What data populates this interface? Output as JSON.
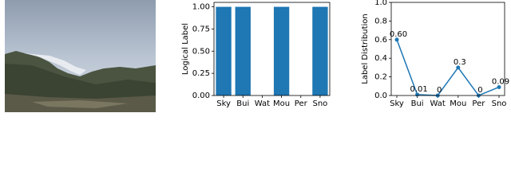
{
  "chart_data": [
    {
      "type": "bar",
      "ylabel": "Logical Label",
      "categories": [
        "Sky",
        "Bui",
        "Wat",
        "Mou",
        "Per",
        "Sno"
      ],
      "values": [
        1,
        1,
        0,
        1,
        0,
        1
      ],
      "color": "#1f77b4",
      "ylim": [
        0,
        1.05
      ],
      "yticks": [
        {
          "value": 0,
          "label": "0.00"
        },
        0.25,
        {
          "value": 0.5,
          "label": "0.50"
        },
        0.75,
        {
          "value": 1,
          "label": "1.00"
        }
      ]
    },
    {
      "type": "line",
      "ylabel": "Label Distribution",
      "categories": [
        "Sky",
        "Bui",
        "Wat",
        "Mou",
        "Per",
        "Sno"
      ],
      "values": [
        0.6,
        0.01,
        0,
        0.3,
        0,
        0.09
      ],
      "value_labels": [
        "0.60",
        "0.01",
        "0",
        "0.3",
        "0",
        "0.09"
      ],
      "color": "#1f77b4",
      "ylim": [
        0,
        1.0
      ],
      "yticks": [
        {
          "value": 0,
          "label": "0.0"
        },
        0.2,
        0.4,
        0.6,
        0.8,
        {
          "value": 1,
          "label": "1.0"
        }
      ]
    }
  ]
}
